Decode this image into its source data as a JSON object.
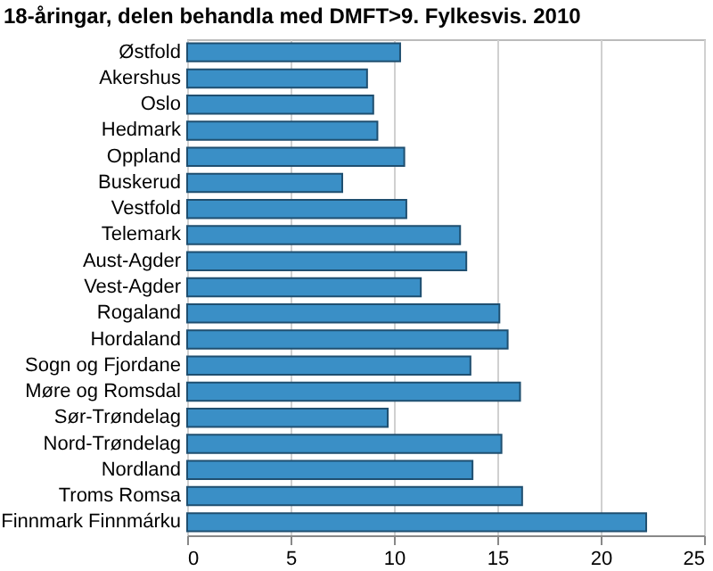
{
  "chart_data": {
    "type": "bar",
    "orientation": "horizontal",
    "title": "18-åringar, delen behandla med DMFT>9. Fylkesvis. 2010",
    "categories": [
      "Østfold",
      "Akershus",
      "Oslo",
      "Hedmark",
      "Oppland",
      "Buskerud",
      "Vestfold",
      "Telemark",
      "Aust-Agder",
      "Vest-Agder",
      "Rogaland",
      "Hordaland",
      "Sogn og Fjordane",
      "Møre og Romsdal",
      "Sør-Trøndelag",
      "Nord-Trøndelag",
      "Nordland",
      "Troms Romsa",
      "Finnmark Finnmárku"
    ],
    "values": [
      10.3,
      8.7,
      9.0,
      9.2,
      10.5,
      7.5,
      10.6,
      13.2,
      13.5,
      11.3,
      15.1,
      15.5,
      13.7,
      16.1,
      9.7,
      15.2,
      13.8,
      16.2,
      22.2
    ],
    "color": "#3a8fc6",
    "xlim": [
      0,
      25
    ],
    "xticks": [
      0,
      5,
      10,
      15,
      20,
      25
    ],
    "grid": "x"
  }
}
